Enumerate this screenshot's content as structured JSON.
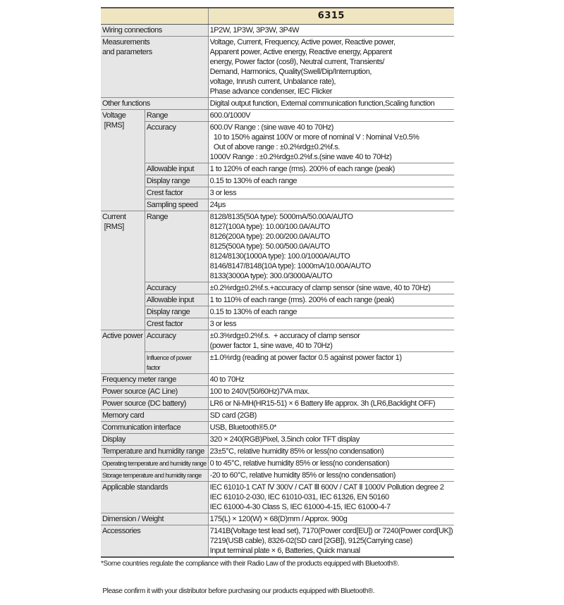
{
  "header": {
    "model": "6315"
  },
  "rows": [
    {
      "label": [
        "Wiring connections"
      ],
      "value": [
        "1P2W, 1P3W, 3P3W, 3P4W"
      ]
    },
    {
      "label": [
        "Measurements",
        "and parameters"
      ],
      "value": [
        "Voltage, Current, Frequency, Active power, Reactive power,",
        "Apparent power, Active energy, Reactive energy, Apparent",
        "energy, Power factor (cosθ), Neutral current, Transients/",
        "Demand, Harmonics, Quality(Swell/Dip/Interruption,",
        "voltage, Inrush current, Unbalance rate),",
        "Phase advance condenser, IEC Flicker"
      ]
    },
    {
      "label": [
        "Other functions"
      ],
      "value": [
        "Digital output function, External communication function,Scaling function"
      ]
    },
    {
      "label": [
        "Voltage",
        " [RMS]"
      ],
      "sub": [
        {
          "label": "Range",
          "value": [
            "600.0/1000V"
          ]
        },
        {
          "label": "Accuracy",
          "value": [
            "600.0V Range : (sine wave 40 to 70Hz)",
            "  10 to 150% against 100V or more of nominal V : Nominal V±0.5%",
            "  Out of above range : ±0.2%rdg±0.2%f.s.",
            "1000V Range : ±0.2%rdg±0.2%f.s.(sine wave 40 to 70Hz)"
          ]
        },
        {
          "label": "Allowable input",
          "value": [
            "1 to 120% of each range (rms). 200% of each range (peak)"
          ]
        },
        {
          "label": "Display range",
          "value": [
            "0.15 to 130% of each range"
          ]
        },
        {
          "label": "Crest factor",
          "value": [
            "3 or less"
          ]
        },
        {
          "label": "Sampling speed",
          "value": [
            "24μs"
          ]
        }
      ]
    },
    {
      "label": [
        "Current",
        " [RMS]"
      ],
      "sub": [
        {
          "label": "Range",
          "value": [
            "8128/8135(50A type): 5000mA/50.00A/AUTO",
            "8127(100A type): 10.00/100.0A/AUTO",
            "8126(200A type): 20.00/200.0A/AUTO",
            "8125(500A type): 50.00/500.0A/AUTO",
            "8124/8130(1000A type): 100.0/1000A/AUTO",
            "8146/8147/8148(10A type): 1000mA/10.00A/AUTO",
            "8133(3000A type): 300.0/3000A/AUTO"
          ]
        },
        {
          "label": "Accuracy",
          "value": [
            "±0.2%rdg±0.2%f.s.+accuracy of clamp sensor (sine wave, 40 to 70Hz)"
          ]
        },
        {
          "label": "Allowable input",
          "value": [
            "1 to 110% of each range (rms). 200% of each range (peak)"
          ]
        },
        {
          "label": "Display range",
          "value": [
            "0.15 to 130% of each range"
          ]
        },
        {
          "label": "Crest factor",
          "value": [
            "3 or less"
          ]
        }
      ]
    },
    {
      "label": [
        "Active power"
      ],
      "sub": [
        {
          "label": "Accuracy",
          "value": [
            "±0.3%rdg±0.2%f.s.  + accuracy of clamp sensor",
            "(power factor 1, sine wave, 40 to 70Hz)"
          ]
        },
        {
          "label": "Influence of power factor",
          "small": true,
          "value": [
            "±1.0%rdg (reading at power factor 0.5 against power factor 1)"
          ]
        }
      ]
    },
    {
      "label": [
        "Frequency meter range"
      ],
      "value": [
        "40 to 70Hz"
      ]
    },
    {
      "label": [
        "Power source (AC Line)"
      ],
      "value": [
        "100 to 240V(50/60Hz)7VA max."
      ]
    },
    {
      "label": [
        "Power source (DC battery)"
      ],
      "value": [
        "LR6 or Ni-MH(HR15-51) × 6 Battery life approx. 3h (LR6,Backlight OFF)"
      ]
    },
    {
      "label": [
        "Memory card"
      ],
      "value": [
        "SD card (2GB)"
      ]
    },
    {
      "label": [
        "Communication interface"
      ],
      "value": [
        "USB, Bluetooth®5.0*"
      ]
    },
    {
      "label": [
        "Display"
      ],
      "value": [
        "320 × 240(RGB)Pixel, 3.5inch color TFT display"
      ]
    },
    {
      "label": [
        "Temperature and humidity range"
      ],
      "value": [
        "23±5°C, relative humidity 85% or less(no condensation)"
      ]
    },
    {
      "label": [
        "Operating temperature and humidity range"
      ],
      "small": true,
      "value": [
        "0 to 45°C, relative humidity 85% or less(no condensation)"
      ]
    },
    {
      "label": [
        "Storage temperature and humidity range"
      ],
      "small": true,
      "value": [
        "-20 to 60°C, relative humidity 85% or less(no condensation)"
      ]
    },
    {
      "label": [
        "Applicable standards"
      ],
      "value": [
        "IEC 61010-1 CAT Ⅳ 300V / CAT Ⅲ 600V / CAT Ⅱ 1000V Pollution degree 2",
        "IEC 61010-2-030, IEC 61010-031, IEC 61326, EN 50160",
        "IEC 61000-4-30 Class S, IEC 61000-4-15, IEC 61000-4-7"
      ]
    },
    {
      "label": [
        "Dimension / Weight"
      ],
      "value": [
        "175(L) × 120(W) × 68(D)mm / Approx. 900g"
      ]
    },
    {
      "label": [
        "Accessories"
      ],
      "value": [
        "7141B(Voltage test lead set), 7170(Power cord[EU]) or 7240(Power cord[UK])",
        "7219(USB cable), 8326-02(SD card [2GB]), 9125(Carrying case)",
        "Input terminal plate × 6, Batteries, Quick manual"
      ]
    }
  ],
  "footnote": [
    "*Some countries regulate the compliance with their Radio Law of the products equipped with Bluetooth®.",
    " Please confirm it with your distributor before purchasing our products equipped with Bluetooth®."
  ]
}
